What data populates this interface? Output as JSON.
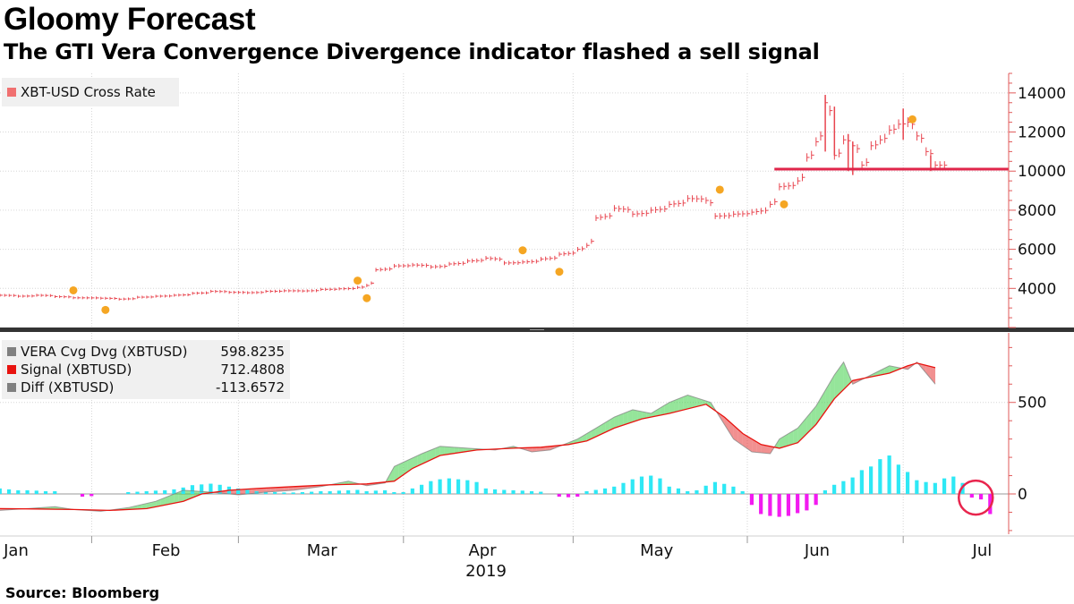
{
  "title": "Gloomy Forecast",
  "subtitle": "The GTI Vera Convergence Divergence indicator flashed a sell signal",
  "source": "Source: Bloomberg",
  "colors": {
    "price": "#e8454f",
    "support_line": "#e0254a",
    "dots": "#f5a623",
    "vera_line": "#7e7e7e",
    "signal_line": "#e8130f",
    "up_fill": "#3ecf47",
    "down_fill": "#e63535",
    "hist_pos": "#2ee8f5",
    "hist_neg": "#f21bf0",
    "circle": "#e8254d",
    "axis": "#e05a5a"
  },
  "chart_data": [
    {
      "type": "line",
      "style": "ohlc-bar",
      "legend": [
        {
          "name": "XBT-USD Cross Rate",
          "color": "#f07070"
        }
      ],
      "y_ticks": [
        4000,
        6000,
        8000,
        10000,
        12000,
        14000
      ],
      "ylim": [
        2000,
        15000
      ],
      "x_tick_labels": [
        "Jan",
        "Feb",
        "Mar",
        "Apr",
        "May",
        "Jun",
        "Jul"
      ],
      "x_year_label": "2019",
      "support_line": {
        "value": 10100,
        "from_day": 165,
        "to_day": 185
      },
      "price": [
        [
          0,
          3650
        ],
        [
          4,
          3600
        ],
        [
          8,
          3650
        ],
        [
          12,
          3580
        ],
        [
          16,
          3520
        ],
        [
          22,
          3500
        ],
        [
          26,
          3450
        ],
        [
          30,
          3550
        ],
        [
          34,
          3600
        ],
        [
          38,
          3650
        ],
        [
          42,
          3750
        ],
        [
          46,
          3850
        ],
        [
          50,
          3800
        ],
        [
          54,
          3780
        ],
        [
          58,
          3850
        ],
        [
          62,
          3880
        ],
        [
          66,
          3870
        ],
        [
          70,
          3950
        ],
        [
          74,
          3980
        ],
        [
          78,
          4050
        ],
        [
          80,
          4150
        ],
        [
          82,
          4950
        ],
        [
          86,
          5150
        ],
        [
          90,
          5200
        ],
        [
          94,
          5100
        ],
        [
          98,
          5250
        ],
        [
          102,
          5400
        ],
        [
          106,
          5550
        ],
        [
          110,
          5300
        ],
        [
          114,
          5350
        ],
        [
          118,
          5500
        ],
        [
          122,
          5750
        ],
        [
          126,
          6000
        ],
        [
          128,
          6200
        ],
        [
          130,
          7600
        ],
        [
          134,
          8100
        ],
        [
          138,
          7800
        ],
        [
          142,
          8000
        ],
        [
          146,
          8300
        ],
        [
          150,
          8600
        ],
        [
          154,
          8500
        ],
        [
          156,
          7700
        ],
        [
          160,
          7800
        ],
        [
          164,
          7900
        ],
        [
          168,
          8300
        ],
        [
          170,
          9200
        ],
        [
          174,
          9500
        ],
        [
          176,
          10700
        ],
        [
          178,
          11500
        ],
        [
          180,
          13500
        ],
        [
          182,
          10800
        ],
        [
          184,
          11600
        ],
        [
          186,
          11300
        ],
        [
          188,
          10300
        ],
        [
          190,
          11300
        ],
        [
          192,
          11600
        ],
        [
          194,
          12100
        ],
        [
          196,
          12400
        ],
        [
          198,
          12500
        ],
        [
          200,
          11800
        ],
        [
          202,
          11000
        ],
        [
          204,
          10300
        ]
      ],
      "dots": [
        [
          16,
          3900
        ],
        [
          23,
          2900
        ],
        [
          78,
          4400
        ],
        [
          80,
          3500
        ],
        [
          114,
          5950
        ],
        [
          122,
          4850
        ],
        [
          157,
          9050
        ],
        [
          171,
          8300
        ],
        [
          199,
          12650
        ]
      ]
    },
    {
      "type": "area",
      "legend": [
        {
          "name": "VERA Cvg Dvg (XBTUSD)",
          "value": "598.8235",
          "color": "#808080"
        },
        {
          "name": "Signal (XBTUSD)",
          "value": "712.4808",
          "color": "#e8130f"
        },
        {
          "name": "Diff (XBTUSD)",
          "value": "-113.6572",
          "color": "#808080"
        }
      ],
      "y_ticks": [
        0,
        500
      ],
      "ylim": [
        -220,
        880
      ],
      "vera": [
        [
          0,
          -90
        ],
        [
          6,
          -80
        ],
        [
          12,
          -70
        ],
        [
          16,
          -85
        ],
        [
          22,
          -95
        ],
        [
          28,
          -75
        ],
        [
          34,
          -40
        ],
        [
          40,
          20
        ],
        [
          46,
          10
        ],
        [
          52,
          -5
        ],
        [
          58,
          10
        ],
        [
          64,
          20
        ],
        [
          70,
          40
        ],
        [
          76,
          70
        ],
        [
          80,
          45
        ],
        [
          84,
          60
        ],
        [
          86,
          150
        ],
        [
          92,
          220
        ],
        [
          96,
          260
        ],
        [
          102,
          250
        ],
        [
          108,
          240
        ],
        [
          112,
          260
        ],
        [
          116,
          230
        ],
        [
          120,
          240
        ],
        [
          126,
          300
        ],
        [
          130,
          360
        ],
        [
          134,
          420
        ],
        [
          138,
          460
        ],
        [
          142,
          440
        ],
        [
          146,
          500
        ],
        [
          150,
          540
        ],
        [
          155,
          500
        ],
        [
          160,
          300
        ],
        [
          164,
          230
        ],
        [
          168,
          220
        ],
        [
          170,
          300
        ],
        [
          174,
          360
        ],
        [
          178,
          480
        ],
        [
          182,
          650
        ],
        [
          184,
          720
        ],
        [
          186,
          600
        ],
        [
          190,
          650
        ],
        [
          194,
          700
        ],
        [
          198,
          680
        ],
        [
          200,
          720
        ],
        [
          202,
          660
        ],
        [
          204,
          600
        ]
      ],
      "signal": [
        [
          0,
          -80
        ],
        [
          8,
          -82
        ],
        [
          16,
          -85
        ],
        [
          24,
          -90
        ],
        [
          32,
          -80
        ],
        [
          40,
          -40
        ],
        [
          44,
          0
        ],
        [
          50,
          20
        ],
        [
          56,
          30
        ],
        [
          64,
          40
        ],
        [
          72,
          50
        ],
        [
          80,
          55
        ],
        [
          86,
          70
        ],
        [
          90,
          140
        ],
        [
          96,
          210
        ],
        [
          104,
          240
        ],
        [
          112,
          250
        ],
        [
          118,
          255
        ],
        [
          124,
          270
        ],
        [
          128,
          290
        ],
        [
          134,
          360
        ],
        [
          140,
          410
        ],
        [
          146,
          440
        ],
        [
          154,
          490
        ],
        [
          158,
          420
        ],
        [
          162,
          330
        ],
        [
          166,
          270
        ],
        [
          170,
          250
        ],
        [
          174,
          280
        ],
        [
          178,
          380
        ],
        [
          182,
          520
        ],
        [
          186,
          620
        ],
        [
          190,
          640
        ],
        [
          194,
          660
        ],
        [
          198,
          700
        ],
        [
          200,
          715
        ],
        [
          204,
          690
        ]
      ],
      "histogram": [
        [
          0,
          30
        ],
        [
          2,
          25
        ],
        [
          4,
          20
        ],
        [
          6,
          20
        ],
        [
          8,
          18
        ],
        [
          10,
          15
        ],
        [
          12,
          15
        ],
        [
          18,
          -15
        ],
        [
          20,
          -12
        ],
        [
          28,
          10
        ],
        [
          30,
          12
        ],
        [
          32,
          15
        ],
        [
          34,
          18
        ],
        [
          36,
          20
        ],
        [
          38,
          25
        ],
        [
          40,
          35
        ],
        [
          42,
          48
        ],
        [
          44,
          52
        ],
        [
          46,
          56
        ],
        [
          48,
          50
        ],
        [
          50,
          40
        ],
        [
          52,
          30
        ],
        [
          54,
          22
        ],
        [
          56,
          15
        ],
        [
          58,
          12
        ],
        [
          60,
          10
        ],
        [
          62,
          8
        ],
        [
          64,
          8
        ],
        [
          66,
          10
        ],
        [
          68,
          12
        ],
        [
          70,
          15
        ],
        [
          72,
          15
        ],
        [
          74,
          18
        ],
        [
          76,
          20
        ],
        [
          78,
          22
        ],
        [
          80,
          15
        ],
        [
          82,
          18
        ],
        [
          84,
          20
        ],
        [
          86,
          10
        ],
        [
          88,
          10
        ],
        [
          90,
          30
        ],
        [
          92,
          50
        ],
        [
          94,
          70
        ],
        [
          96,
          80
        ],
        [
          98,
          85
        ],
        [
          100,
          80
        ],
        [
          102,
          75
        ],
        [
          104,
          65
        ],
        [
          106,
          30
        ],
        [
          108,
          25
        ],
        [
          110,
          22
        ],
        [
          112,
          20
        ],
        [
          114,
          18
        ],
        [
          116,
          15
        ],
        [
          118,
          12
        ],
        [
          122,
          -15
        ],
        [
          124,
          -18
        ],
        [
          126,
          -15
        ],
        [
          128,
          15
        ],
        [
          130,
          22
        ],
        [
          132,
          30
        ],
        [
          134,
          40
        ],
        [
          136,
          60
        ],
        [
          138,
          80
        ],
        [
          140,
          95
        ],
        [
          142,
          100
        ],
        [
          144,
          85
        ],
        [
          146,
          40
        ],
        [
          148,
          30
        ],
        [
          150,
          15
        ],
        [
          152,
          20
        ],
        [
          154,
          45
        ],
        [
          156,
          65
        ],
        [
          158,
          55
        ],
        [
          160,
          40
        ],
        [
          162,
          15
        ],
        [
          164,
          -60
        ],
        [
          166,
          -110
        ],
        [
          168,
          -120
        ],
        [
          170,
          -125
        ],
        [
          172,
          -120
        ],
        [
          174,
          -105
        ],
        [
          176,
          -90
        ],
        [
          178,
          -60
        ],
        [
          180,
          20
        ],
        [
          182,
          50
        ],
        [
          184,
          70
        ],
        [
          186,
          90
        ],
        [
          188,
          130
        ],
        [
          190,
          150
        ],
        [
          192,
          190
        ],
        [
          194,
          210
        ],
        [
          196,
          160
        ],
        [
          198,
          120
        ],
        [
          200,
          75
        ],
        [
          202,
          65
        ],
        [
          204,
          60
        ],
        [
          206,
          85
        ],
        [
          208,
          95
        ],
        [
          210,
          60
        ],
        [
          212,
          -20
        ],
        [
          214,
          -30
        ],
        [
          216,
          -110
        ]
      ],
      "highlight_circle_day": 214
    }
  ]
}
